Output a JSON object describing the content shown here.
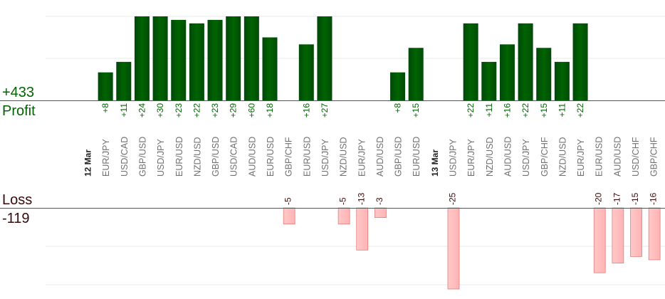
{
  "summary": {
    "profit_value": "+433",
    "profit_label": "Profit",
    "loss_label": "Loss",
    "loss_value": "-119"
  },
  "colors": {
    "profit_bar": "#006400",
    "loss_bar": "#ffb3b3",
    "profit_text": "#006400",
    "loss_text": "#3a0a0a"
  },
  "chart_data": {
    "type": "bar",
    "grid": true,
    "categories": [
      "12 Mar",
      "EUR/JPY",
      "USD/CAD",
      "GBP/USD",
      "USD/JPY",
      "EUR/USD",
      "NZD/USD",
      "GBP/USD",
      "USD/CAD",
      "AUD/USD",
      "EUR/USD",
      "GBP/CHF",
      "EUR/USD",
      "USD/JPY",
      "NZD/USD",
      "EUR/JPY",
      "AUD/USD",
      "GBP/USD",
      "EUR/USD",
      "13 Mar",
      "USD/JPY",
      "EUR/JPY",
      "NZD/USD",
      "AUD/USD",
      "USD/JPY",
      "GBP/CHF",
      "NZD/USD",
      "EUR/JPY",
      "EUR/USD",
      "AUD/USD",
      "USD/CHF",
      "GBP/CHF"
    ],
    "date_labels": [
      "12 Mar",
      "13 Mar"
    ],
    "profit": [
      null,
      8,
      11,
      24,
      30,
      23,
      22,
      23,
      29,
      60,
      18,
      null,
      16,
      27,
      null,
      null,
      null,
      8,
      15,
      null,
      null,
      22,
      11,
      16,
      22,
      15,
      11,
      22,
      null,
      null,
      null,
      null
    ],
    "loss": [
      null,
      null,
      null,
      null,
      null,
      null,
      null,
      null,
      null,
      null,
      null,
      -5,
      null,
      null,
      -5,
      -13,
      -3,
      null,
      null,
      null,
      -25,
      null,
      null,
      null,
      null,
      null,
      null,
      null,
      -20,
      -17,
      -15,
      -16
    ],
    "profit_axis_max": 24,
    "loss_axis_min": -25
  }
}
